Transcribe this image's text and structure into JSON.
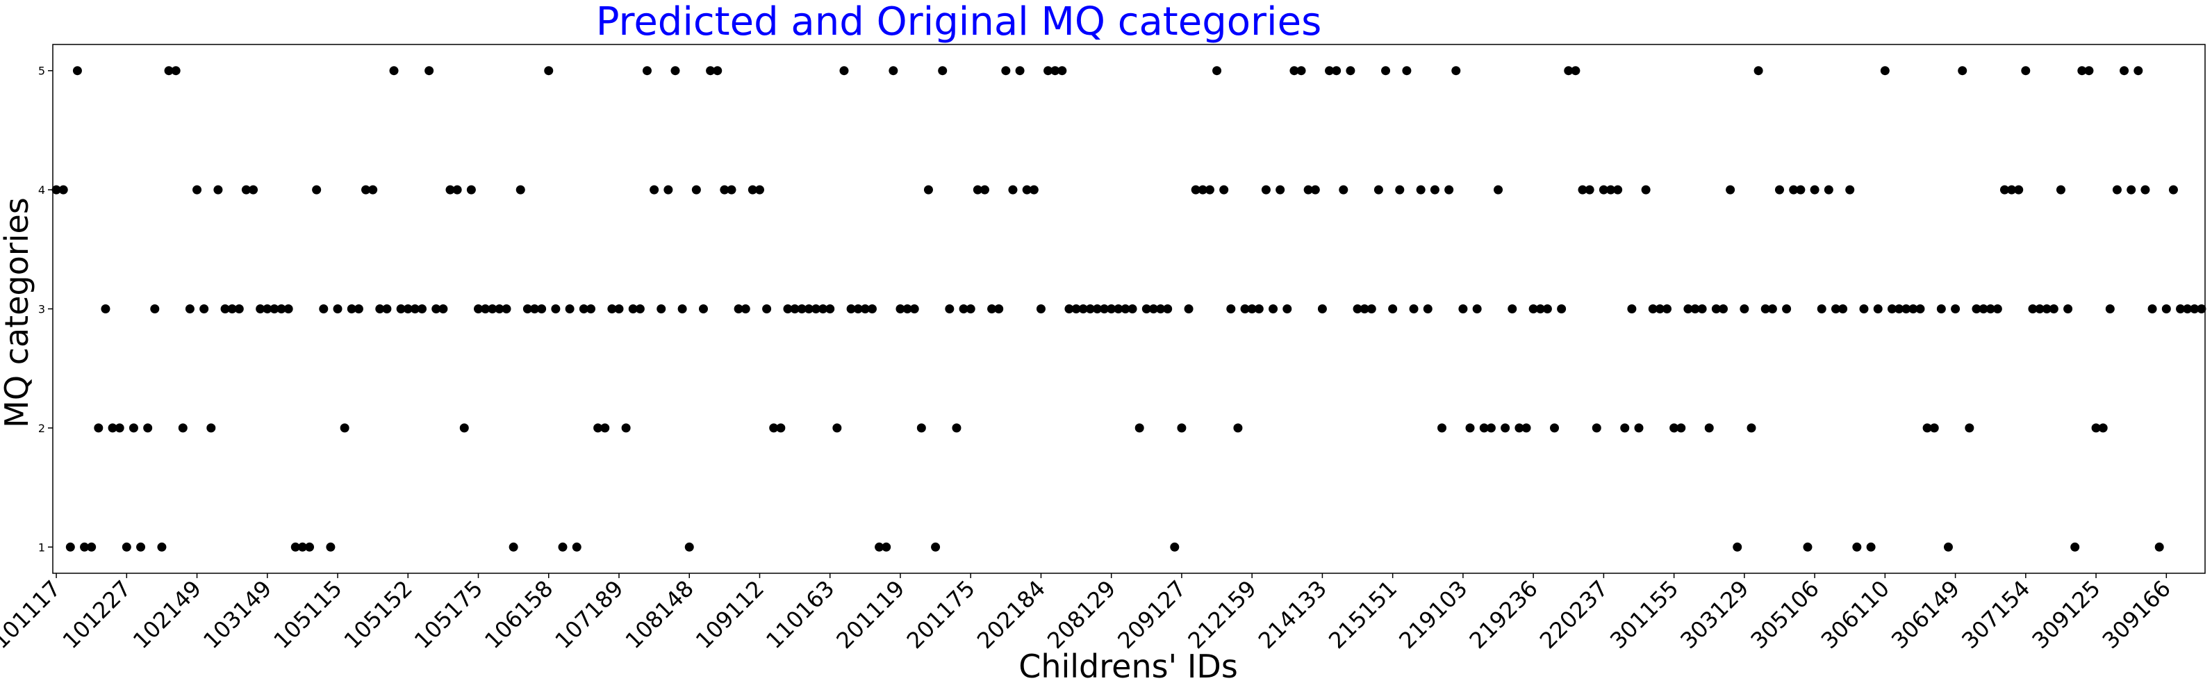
{
  "chart_data": {
    "type": "scatter",
    "title": "Predicted and Original MQ categories",
    "xlabel": "Childrens' IDs",
    "ylabel": "MQ categories",
    "x_tick_labels": [
      "101117",
      "101227",
      "102149",
      "103149",
      "105115",
      "105152",
      "105175",
      "106158",
      "107189",
      "108148",
      "109112",
      "110163",
      "201119",
      "201175",
      "202184",
      "208129",
      "209127",
      "212159",
      "214133",
      "215151",
      "219103",
      "219236",
      "220237",
      "301155",
      "303129",
      "305106",
      "306110",
      "306149",
      "307154",
      "309125",
      "309166"
    ],
    "x_tick_step": 10,
    "y_ticks": [
      1,
      2,
      3,
      4,
      5
    ],
    "ylim": [
      0.78,
      5.22
    ],
    "grid": false,
    "legend": "none",
    "point_color": "#000000",
    "title_color": "#0000ff",
    "points": [
      [
        0,
        4
      ],
      [
        1,
        4
      ],
      [
        2,
        1
      ],
      [
        3,
        5
      ],
      [
        4,
        1
      ],
      [
        5,
        1
      ],
      [
        6,
        2
      ],
      [
        7,
        3
      ],
      [
        8,
        2
      ],
      [
        9,
        2
      ],
      [
        10,
        1
      ],
      [
        11,
        2
      ],
      [
        12,
        1
      ],
      [
        13,
        2
      ],
      [
        14,
        3
      ],
      [
        15,
        1
      ],
      [
        16,
        5
      ],
      [
        17,
        5
      ],
      [
        18,
        2
      ],
      [
        19,
        3
      ],
      [
        20,
        4
      ],
      [
        21,
        3
      ],
      [
        22,
        2
      ],
      [
        23,
        4
      ],
      [
        24,
        3
      ],
      [
        25,
        3
      ],
      [
        26,
        3
      ],
      [
        27,
        4
      ],
      [
        28,
        4
      ],
      [
        29,
        3
      ],
      [
        30,
        3
      ],
      [
        31,
        3
      ],
      [
        32,
        3
      ],
      [
        33,
        3
      ],
      [
        34,
        1
      ],
      [
        35,
        1
      ],
      [
        36,
        1
      ],
      [
        37,
        4
      ],
      [
        38,
        3
      ],
      [
        39,
        1
      ],
      [
        40,
        3
      ],
      [
        41,
        2
      ],
      [
        42,
        3
      ],
      [
        43,
        3
      ],
      [
        44,
        4
      ],
      [
        45,
        4
      ],
      [
        46,
        3
      ],
      [
        47,
        3
      ],
      [
        48,
        5
      ],
      [
        49,
        3
      ],
      [
        50,
        3
      ],
      [
        51,
        3
      ],
      [
        52,
        3
      ],
      [
        53,
        5
      ],
      [
        54,
        3
      ],
      [
        55,
        3
      ],
      [
        56,
        4
      ],
      [
        57,
        4
      ],
      [
        58,
        2
      ],
      [
        59,
        4
      ],
      [
        60,
        3
      ],
      [
        61,
        3
      ],
      [
        62,
        3
      ],
      [
        63,
        3
      ],
      [
        64,
        3
      ],
      [
        65,
        1
      ],
      [
        66,
        4
      ],
      [
        67,
        3
      ],
      [
        68,
        3
      ],
      [
        69,
        3
      ],
      [
        70,
        5
      ],
      [
        71,
        3
      ],
      [
        72,
        1
      ],
      [
        73,
        3
      ],
      [
        74,
        1
      ],
      [
        75,
        3
      ],
      [
        76,
        3
      ],
      [
        77,
        2
      ],
      [
        78,
        2
      ],
      [
        79,
        3
      ],
      [
        80,
        3
      ],
      [
        81,
        2
      ],
      [
        82,
        3
      ],
      [
        83,
        3
      ],
      [
        84,
        5
      ],
      [
        85,
        4
      ],
      [
        86,
        3
      ],
      [
        87,
        4
      ],
      [
        88,
        5
      ],
      [
        89,
        3
      ],
      [
        90,
        1
      ],
      [
        91,
        4
      ],
      [
        92,
        3
      ],
      [
        93,
        5
      ],
      [
        94,
        5
      ],
      [
        95,
        4
      ],
      [
        96,
        4
      ],
      [
        97,
        3
      ],
      [
        98,
        3
      ],
      [
        99,
        4
      ],
      [
        100,
        4
      ],
      [
        101,
        3
      ],
      [
        102,
        2
      ],
      [
        103,
        2
      ],
      [
        104,
        3
      ],
      [
        105,
        3
      ],
      [
        106,
        3
      ],
      [
        107,
        3
      ],
      [
        108,
        3
      ],
      [
        109,
        3
      ],
      [
        110,
        3
      ],
      [
        111,
        2
      ],
      [
        112,
        5
      ],
      [
        113,
        3
      ],
      [
        114,
        3
      ],
      [
        115,
        3
      ],
      [
        116,
        3
      ],
      [
        117,
        1
      ],
      [
        118,
        1
      ],
      [
        119,
        5
      ],
      [
        120,
        3
      ],
      [
        121,
        3
      ],
      [
        122,
        3
      ],
      [
        123,
        2
      ],
      [
        124,
        4
      ],
      [
        125,
        1
      ],
      [
        126,
        5
      ],
      [
        127,
        3
      ],
      [
        128,
        2
      ],
      [
        129,
        3
      ],
      [
        130,
        3
      ],
      [
        131,
        4
      ],
      [
        132,
        4
      ],
      [
        133,
        3
      ],
      [
        134,
        3
      ],
      [
        135,
        5
      ],
      [
        136,
        4
      ],
      [
        137,
        5
      ],
      [
        138,
        4
      ],
      [
        139,
        4
      ],
      [
        140,
        3
      ],
      [
        141,
        5
      ],
      [
        142,
        5
      ],
      [
        143,
        5
      ],
      [
        144,
        3
      ],
      [
        145,
        3
      ],
      [
        146,
        3
      ],
      [
        147,
        3
      ],
      [
        148,
        3
      ],
      [
        149,
        3
      ],
      [
        150,
        3
      ],
      [
        151,
        3
      ],
      [
        152,
        3
      ],
      [
        153,
        3
      ],
      [
        154,
        2
      ],
      [
        155,
        3
      ],
      [
        156,
        3
      ],
      [
        157,
        3
      ],
      [
        158,
        3
      ],
      [
        159,
        1
      ],
      [
        160,
        2
      ],
      [
        161,
        3
      ],
      [
        162,
        4
      ],
      [
        163,
        4
      ],
      [
        164,
        4
      ],
      [
        165,
        5
      ],
      [
        166,
        4
      ],
      [
        167,
        3
      ],
      [
        168,
        2
      ],
      [
        169,
        3
      ],
      [
        170,
        3
      ],
      [
        171,
        3
      ],
      [
        172,
        4
      ],
      [
        173,
        3
      ],
      [
        174,
        4
      ],
      [
        175,
        3
      ],
      [
        176,
        5
      ],
      [
        177,
        5
      ],
      [
        178,
        4
      ],
      [
        179,
        4
      ],
      [
        180,
        3
      ],
      [
        181,
        5
      ],
      [
        182,
        5
      ],
      [
        183,
        4
      ],
      [
        184,
        5
      ],
      [
        185,
        3
      ],
      [
        186,
        3
      ],
      [
        187,
        3
      ],
      [
        188,
        4
      ],
      [
        189,
        5
      ],
      [
        190,
        3
      ],
      [
        191,
        4
      ],
      [
        192,
        5
      ],
      [
        193,
        3
      ],
      [
        194,
        4
      ],
      [
        195,
        3
      ],
      [
        196,
        4
      ],
      [
        197,
        2
      ],
      [
        198,
        4
      ],
      [
        199,
        5
      ],
      [
        200,
        3
      ],
      [
        201,
        2
      ],
      [
        202,
        3
      ],
      [
        203,
        2
      ],
      [
        204,
        2
      ],
      [
        205,
        4
      ],
      [
        206,
        2
      ],
      [
        207,
        3
      ],
      [
        208,
        2
      ],
      [
        209,
        2
      ],
      [
        210,
        3
      ],
      [
        211,
        3
      ],
      [
        212,
        3
      ],
      [
        213,
        2
      ],
      [
        214,
        3
      ],
      [
        215,
        5
      ],
      [
        216,
        5
      ],
      [
        217,
        4
      ],
      [
        218,
        4
      ],
      [
        219,
        2
      ],
      [
        220,
        4
      ],
      [
        221,
        4
      ],
      [
        222,
        4
      ],
      [
        223,
        2
      ],
      [
        224,
        3
      ],
      [
        225,
        2
      ],
      [
        226,
        4
      ],
      [
        227,
        3
      ],
      [
        228,
        3
      ],
      [
        229,
        3
      ],
      [
        230,
        2
      ],
      [
        231,
        2
      ],
      [
        232,
        3
      ],
      [
        233,
        3
      ],
      [
        234,
        3
      ],
      [
        235,
        2
      ],
      [
        236,
        3
      ],
      [
        237,
        3
      ],
      [
        238,
        4
      ],
      [
        239,
        1
      ],
      [
        240,
        3
      ],
      [
        241,
        2
      ],
      [
        242,
        5
      ],
      [
        243,
        3
      ],
      [
        244,
        3
      ],
      [
        245,
        4
      ],
      [
        246,
        3
      ],
      [
        247,
        4
      ],
      [
        248,
        4
      ],
      [
        249,
        1
      ],
      [
        250,
        4
      ],
      [
        251,
        3
      ],
      [
        252,
        4
      ],
      [
        253,
        3
      ],
      [
        254,
        3
      ],
      [
        255,
        4
      ],
      [
        256,
        1
      ],
      [
        257,
        3
      ],
      [
        258,
        1
      ],
      [
        259,
        3
      ],
      [
        260,
        5
      ],
      [
        261,
        3
      ],
      [
        262,
        3
      ],
      [
        263,
        3
      ],
      [
        264,
        3
      ],
      [
        265,
        3
      ],
      [
        266,
        2
      ],
      [
        267,
        2
      ],
      [
        268,
        3
      ],
      [
        269,
        1
      ],
      [
        270,
        3
      ],
      [
        271,
        5
      ],
      [
        272,
        2
      ],
      [
        273,
        3
      ],
      [
        274,
        3
      ],
      [
        275,
        3
      ],
      [
        276,
        3
      ],
      [
        277,
        4
      ],
      [
        278,
        4
      ],
      [
        279,
        4
      ],
      [
        280,
        5
      ],
      [
        281,
        3
      ],
      [
        282,
        3
      ],
      [
        283,
        3
      ],
      [
        284,
        3
      ],
      [
        285,
        4
      ],
      [
        286,
        3
      ],
      [
        287,
        1
      ],
      [
        288,
        5
      ],
      [
        289,
        5
      ],
      [
        290,
        2
      ],
      [
        291,
        2
      ],
      [
        292,
        3
      ],
      [
        293,
        4
      ],
      [
        294,
        5
      ],
      [
        295,
        4
      ],
      [
        296,
        5
      ],
      [
        297,
        4
      ],
      [
        298,
        3
      ],
      [
        299,
        1
      ],
      [
        300,
        3
      ],
      [
        301,
        4
      ],
      [
        302,
        3
      ],
      [
        303,
        3
      ],
      [
        304,
        3
      ],
      [
        305,
        3
      ]
    ]
  }
}
